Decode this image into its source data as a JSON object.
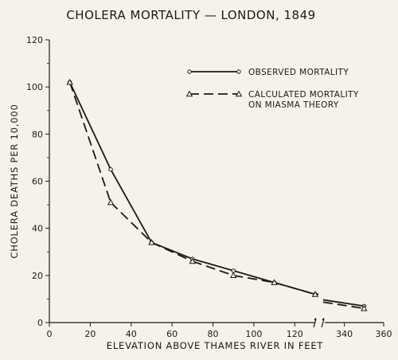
{
  "chart_data": {
    "type": "line",
    "title": "CHOLERA MORTALITY — LONDON, 1849",
    "xlabel": "ELEVATION ABOVE THAMES RIVER IN FEET",
    "ylabel": "CHOLERA DEATHS PER 10,000",
    "xlim_left": [
      0,
      130
    ],
    "xlim_right": [
      330,
      360
    ],
    "ylim": [
      0,
      120
    ],
    "x_ticks": [
      0,
      20,
      40,
      60,
      80,
      100,
      120,
      340,
      360
    ],
    "y_ticks": [
      0,
      20,
      40,
      60,
      80,
      100,
      120
    ],
    "axis_break": true,
    "legend_position": "top-right",
    "series": [
      {
        "name": "OBSERVED MORTALITY",
        "line_style": "solid",
        "marker": "circle",
        "x": [
          10,
          30,
          50,
          70,
          90,
          110,
          130,
          350
        ],
        "y": [
          102,
          65,
          34,
          27,
          22,
          17,
          12,
          7
        ]
      },
      {
        "name": "CALCULATED MORTALITY ON MIASMA THEORY",
        "name_lines": [
          "CALCULATED MORTALITY",
          "ON MIASMA THEORY"
        ],
        "line_style": "dashed",
        "marker": "triangle",
        "x": [
          10,
          30,
          50,
          70,
          90,
          110,
          130,
          350
        ],
        "y": [
          102,
          51,
          34,
          26,
          20,
          17,
          12,
          6
        ]
      }
    ]
  }
}
